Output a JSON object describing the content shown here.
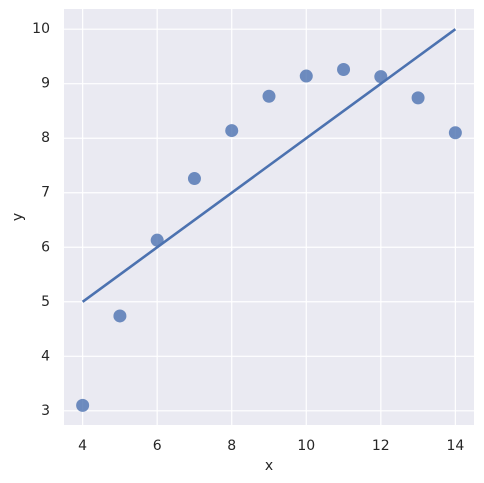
{
  "chart_data": {
    "type": "scatter",
    "xlabel": "x",
    "ylabel": "y",
    "x": [
      4,
      5,
      6,
      7,
      8,
      9,
      10,
      11,
      12,
      13,
      14
    ],
    "values": [
      3.1,
      4.74,
      6.13,
      7.26,
      8.14,
      8.77,
      9.14,
      9.26,
      9.13,
      8.74,
      8.1
    ],
    "color": "#4c72b0",
    "regression": {
      "x": [
        4,
        14
      ],
      "values": [
        5,
        10
      ],
      "color": "#4c72b0"
    },
    "xlim": [
      3.5,
      14.5
    ],
    "ylim": [
      2.74,
      10.37
    ],
    "xticks": [
      4,
      6,
      8,
      10,
      12,
      14
    ],
    "yticks": [
      3,
      4,
      5,
      6,
      7,
      8,
      9,
      10
    ],
    "grid": true
  }
}
